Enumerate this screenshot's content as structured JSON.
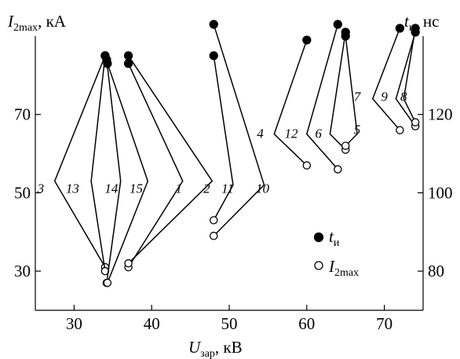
{
  "chart_data": {
    "type": "scatter",
    "x_axis": {
      "label_main": "U",
      "label_sub": "зар",
      "label_unit": ", кВ",
      "range": [
        25,
        75
      ],
      "ticks": [
        30,
        40,
        50,
        60,
        70
      ],
      "tick_labels": [
        "30",
        "40",
        "50",
        "60",
        "70"
      ]
    },
    "y_left": {
      "label_main": "I",
      "label_sub": "2max",
      "label_unit": ", кА",
      "range": [
        20,
        90
      ],
      "ticks": [
        30,
        50,
        70
      ],
      "tick_labels": [
        "30",
        "50",
        "70"
      ]
    },
    "y_right": {
      "label_main": "t",
      "label_sub": "и",
      "label_unit": ", нс",
      "range": [
        70,
        140
      ],
      "ticks": [
        80,
        100,
        120
      ],
      "tick_labels": [
        "80",
        "100",
        "120"
      ]
    },
    "legend": {
      "position": "bottom-right",
      "items": [
        {
          "marker": "filled",
          "label_main": "t",
          "label_sub": "и"
        },
        {
          "marker": "open",
          "label_main": "I",
          "label_sub": "2max"
        }
      ]
    },
    "series": [
      {
        "name": "3",
        "u": 34,
        "t": 135,
        "i": 31.0,
        "apex": [
          27.5,
          53
        ]
      },
      {
        "name": "13",
        "u": 34,
        "t": 135,
        "i": 30.0,
        "apex": [
          32.2,
          53
        ]
      },
      {
        "name": "14",
        "u": 34.2,
        "t": 134,
        "i": 27.0,
        "apex": [
          36.0,
          53
        ]
      },
      {
        "name": "15",
        "u": 34.3,
        "t": 133,
        "i": 27.0,
        "apex": [
          39.5,
          53
        ]
      },
      {
        "name": "1",
        "u": 37,
        "t": 133,
        "i": 31.0,
        "apex": [
          44.0,
          53
        ]
      },
      {
        "name": "2",
        "u": 37,
        "t": 135,
        "i": 32.0,
        "apex": [
          47.8,
          53
        ]
      },
      {
        "name": "11",
        "u": 48,
        "t": 135,
        "i": 43.0,
        "apex": [
          50.5,
          52
        ]
      },
      {
        "name": "10",
        "u": 48,
        "t": 143,
        "i": 39.0,
        "apex": [
          54.5,
          52
        ]
      },
      {
        "name": "4",
        "u": 60,
        "t": 139,
        "i": 57.0,
        "apex": [
          55.8,
          65
        ]
      },
      {
        "name": "12",
        "u": 64,
        "t": 143,
        "i": 56.0,
        "apex": [
          60.0,
          65
        ]
      },
      {
        "name": "6",
        "u": 65,
        "t": 141,
        "i": 61.0,
        "apex": [
          63.0,
          65
        ]
      },
      {
        "name": "5",
        "u": 65,
        "t": 140,
        "i": 62.0,
        "apex": [
          66.5,
          65
        ]
      },
      {
        "name": "7",
        "u": 72,
        "t": 142,
        "i": 66.0,
        "apex": [
          68.5,
          74
        ]
      },
      {
        "name": "9",
        "u": 74,
        "t": 141,
        "i": 67.0,
        "apex": [
          71.5,
          74
        ]
      },
      {
        "name": "8",
        "u": 74,
        "t": 142,
        "i": 68.0,
        "apex": [
          72.5,
          74
        ]
      }
    ],
    "annotations": [
      {
        "text": "3",
        "at": [
          25.7,
          50
        ]
      },
      {
        "text": "13",
        "at": [
          29.8,
          50
        ]
      },
      {
        "text": "14",
        "at": [
          34.8,
          50
        ]
      },
      {
        "text": "15",
        "at": [
          38.0,
          50
        ]
      },
      {
        "text": "1",
        "at": [
          43.5,
          50
        ]
      },
      {
        "text": "2",
        "at": [
          47.1,
          50
        ]
      },
      {
        "text": "11",
        "at": [
          49.8,
          50
        ]
      },
      {
        "text": "10",
        "at": [
          54.3,
          50
        ]
      },
      {
        "text": "4",
        "at": [
          54.0,
          64
        ]
      },
      {
        "text": "12",
        "at": [
          58.0,
          64
        ]
      },
      {
        "text": "6",
        "at": [
          61.5,
          64
        ]
      },
      {
        "text": "5",
        "at": [
          66.5,
          65
        ]
      },
      {
        "text": "7",
        "at": [
          66.5,
          73.5
        ]
      },
      {
        "text": "9",
        "at": [
          70.0,
          73.5
        ]
      },
      {
        "text": "8",
        "at": [
          72.5,
          73.5
        ]
      }
    ]
  }
}
